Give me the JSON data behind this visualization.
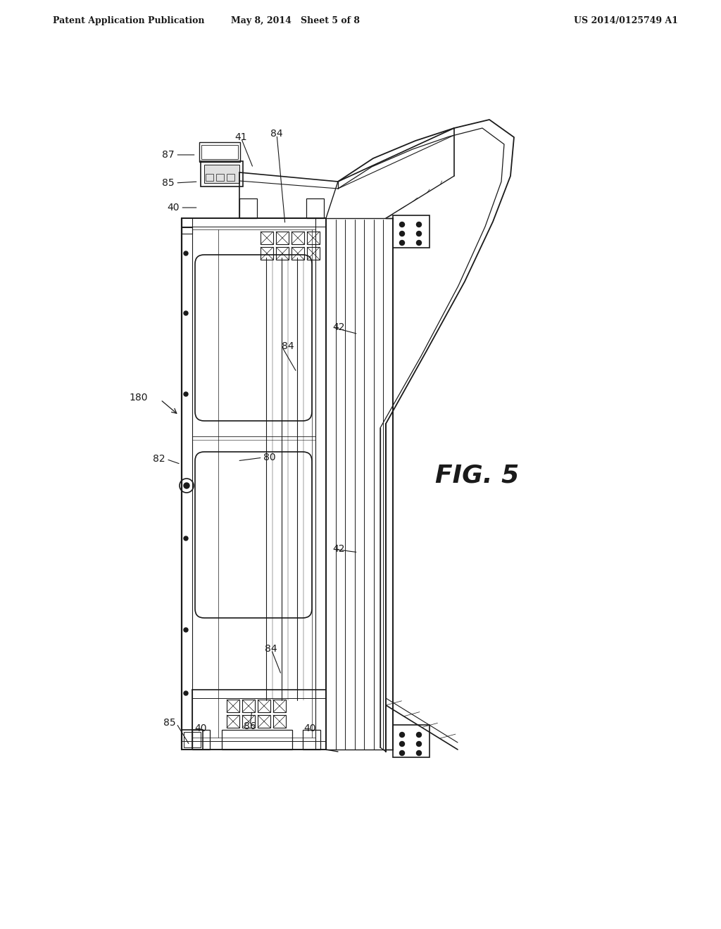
{
  "bg_color": "#ffffff",
  "line_color": "#1a1a1a",
  "header_left": "Patent Application Publication",
  "header_center": "May 8, 2014   Sheet 5 of 8",
  "header_right": "US 2014/0125749 A1",
  "fig_label": "FIG. 5",
  "header_fontsize": 9,
  "fig_label_fontsize": 26,
  "label_fontsize": 10
}
